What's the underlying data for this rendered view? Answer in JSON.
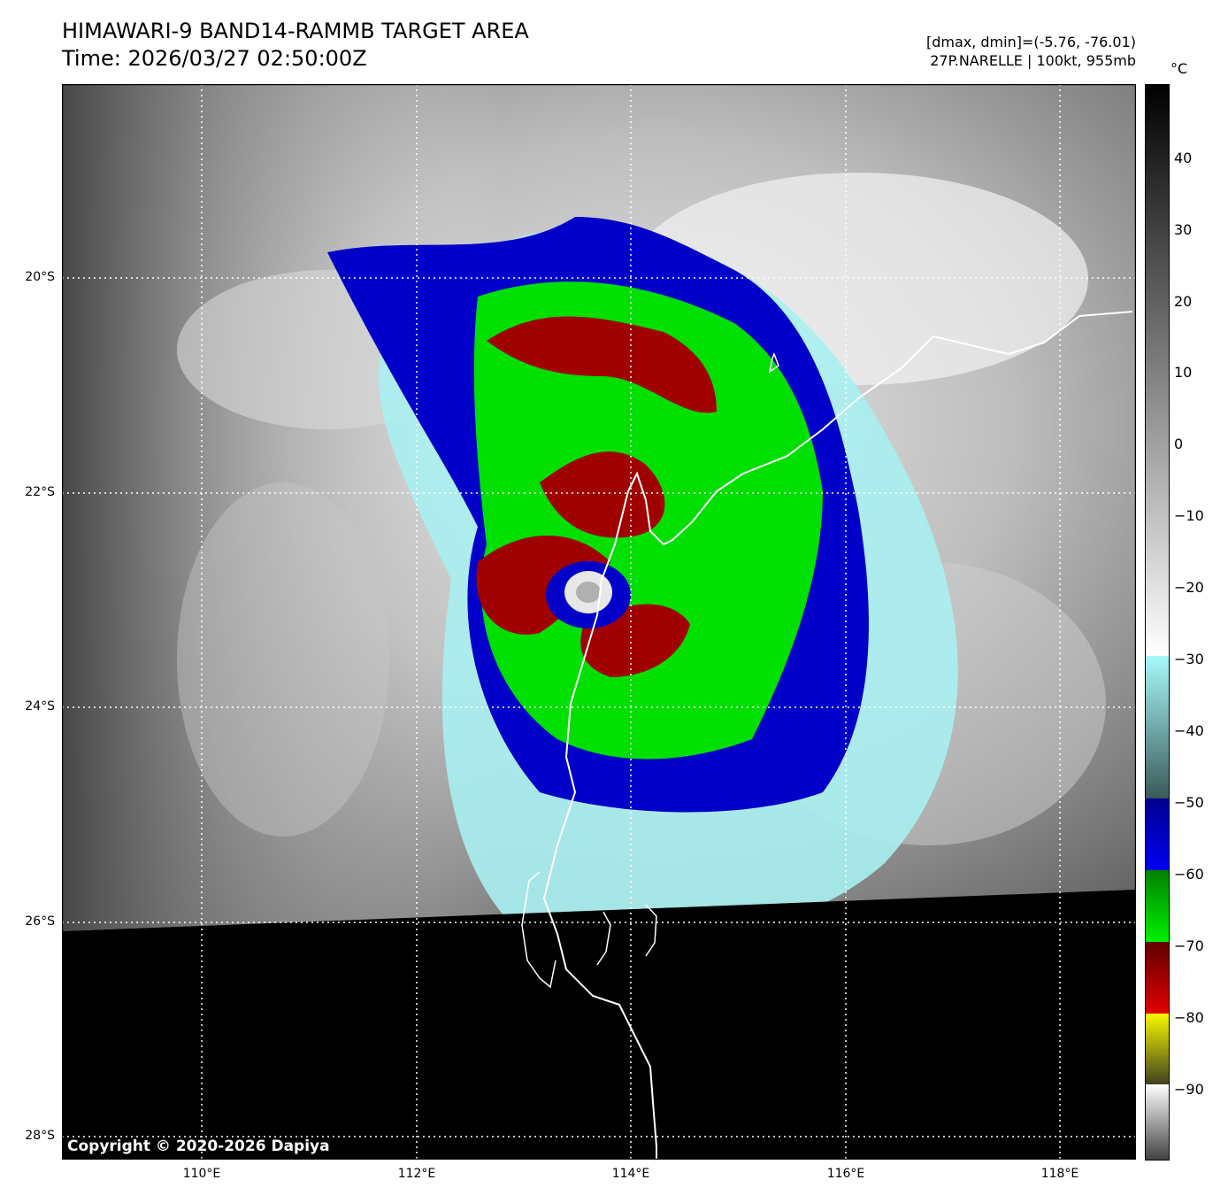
{
  "title_line1": "HIMAWARI-9 BAND14-RAMMB TARGET AREA",
  "title_line2": "Time: 2026/03/27 02:50:00Z",
  "meta_line1": "[dmax, dmin]=(-5.76, -76.01)",
  "meta_line2": "27P.NARELLE | 100kt, 955mb",
  "colorbar_unit": "°C",
  "copyright": "Copyright © 2020-2026 Dapiya",
  "lat_labels": [
    "20°S",
    "22°S",
    "24°S",
    "26°S",
    "28°S"
  ],
  "lon_labels": [
    "110°E",
    "112°E",
    "114°E",
    "116°E",
    "118°E"
  ],
  "colorbar_labels": [
    "40",
    "30",
    "20",
    "10",
    "0",
    "−10",
    "−20",
    "−30",
    "−40",
    "−50",
    "−60",
    "−70",
    "−80",
    "−90"
  ],
  "colors": {
    "green": "#00e000",
    "red": "#a00000",
    "blue": "#0000c8",
    "cyan": "#a8f0f0",
    "yellow": "#f0f000"
  }
}
